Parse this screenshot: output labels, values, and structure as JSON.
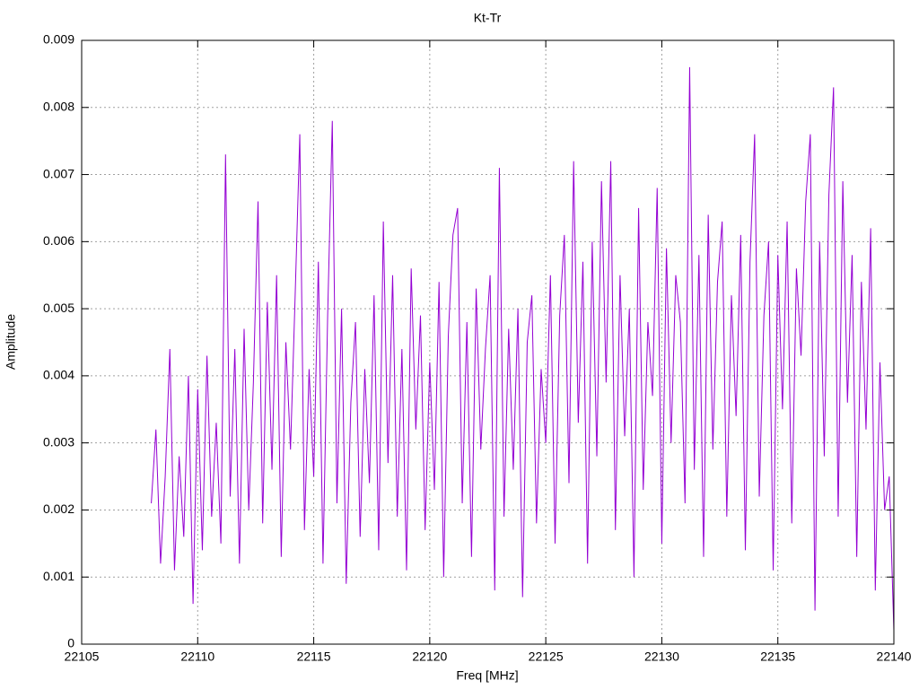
{
  "chart_data": {
    "type": "line",
    "title": "Kt-Tr",
    "x_label": "Freq [MHz]",
    "y_label": "Amplitude",
    "color": "#9400d3",
    "grid": true,
    "xlim": [
      22105,
      22140
    ],
    "xticks": [
      22105,
      22110,
      22115,
      22120,
      22125,
      22130,
      22135,
      22140
    ],
    "ylim": [
      0,
      0.009
    ],
    "yticks": [
      0,
      0.001,
      0.002,
      0.003,
      0.004,
      0.005,
      0.006,
      0.007,
      0.008,
      0.009
    ],
    "x": [
      22108,
      22108.2,
      22108.4,
      22108.6,
      22108.8,
      22109,
      22109.2,
      22109.4,
      22109.6,
      22109.8,
      22110,
      22110.2,
      22110.4,
      22110.6,
      22110.8,
      22111,
      22111.2,
      22111.4,
      22111.6,
      22111.8,
      22112,
      22112.2,
      22112.4,
      22112.6,
      22112.8,
      22113,
      22113.2,
      22113.4,
      22113.6,
      22113.8,
      22114,
      22114.2,
      22114.4,
      22114.6,
      22114.8,
      22115,
      22115.2,
      22115.4,
      22115.6,
      22115.8,
      22116,
      22116.2,
      22116.4,
      22116.6,
      22116.8,
      22117,
      22117.2,
      22117.4,
      22117.6,
      22117.8,
      22118,
      22118.2,
      22118.4,
      22118.6,
      22118.8,
      22119,
      22119.2,
      22119.4,
      22119.6,
      22119.8,
      22120,
      22120.2,
      22120.4,
      22120.6,
      22120.8,
      22121,
      22121.2,
      22121.4,
      22121.6,
      22121.8,
      22122,
      22122.2,
      22122.4,
      22122.6,
      22122.8,
      22123,
      22123.2,
      22123.4,
      22123.6,
      22123.8,
      22124,
      22124.2,
      22124.4,
      22124.6,
      22124.8,
      22125,
      22125.2,
      22125.4,
      22125.6,
      22125.8,
      22126,
      22126.2,
      22126.4,
      22126.6,
      22126.8,
      22127,
      22127.2,
      22127.4,
      22127.6,
      22127.8,
      22128,
      22128.2,
      22128.4,
      22128.6,
      22128.8,
      22129,
      22129.2,
      22129.4,
      22129.6,
      22129.8,
      22130,
      22130.2,
      22130.4,
      22130.6,
      22130.8,
      22131,
      22131.2,
      22131.4,
      22131.6,
      22131.8,
      22132,
      22132.2,
      22132.4,
      22132.6,
      22132.8,
      22133,
      22133.2,
      22133.4,
      22133.6,
      22133.8,
      22134,
      22134.2,
      22134.4,
      22134.6,
      22134.8,
      22135,
      22135.2,
      22135.4,
      22135.6,
      22135.8,
      22136,
      22136.2,
      22136.4,
      22136.6,
      22136.8,
      22137,
      22137.2,
      22137.4,
      22137.6,
      22137.8,
      22138,
      22138.2,
      22138.4,
      22138.6,
      22138.8,
      22139,
      22139.2,
      22139.4,
      22139.6,
      22139.8,
      22140
    ],
    "values": [
      0.0021,
      0.0032,
      0.0012,
      0.0025,
      0.0044,
      0.0011,
      0.0028,
      0.0016,
      0.004,
      0.0006,
      0.0038,
      0.0014,
      0.0043,
      0.0019,
      0.0033,
      0.0015,
      0.0073,
      0.0022,
      0.0044,
      0.0012,
      0.0047,
      0.002,
      0.0039,
      0.0066,
      0.0018,
      0.0051,
      0.0026,
      0.0055,
      0.0013,
      0.0045,
      0.0029,
      0.0052,
      0.0076,
      0.0017,
      0.0041,
      0.0025,
      0.0057,
      0.0012,
      0.0049,
      0.0078,
      0.0021,
      0.005,
      0.0009,
      0.0036,
      0.0048,
      0.0016,
      0.0041,
      0.0024,
      0.0052,
      0.0014,
      0.0063,
      0.0027,
      0.0055,
      0.0019,
      0.0044,
      0.0011,
      0.0056,
      0.0032,
      0.0049,
      0.0017,
      0.0042,
      0.0023,
      0.0054,
      0.001,
      0.0046,
      0.0061,
      0.0065,
      0.0021,
      0.0048,
      0.0013,
      0.0053,
      0.0029,
      0.0044,
      0.0055,
      0.0008,
      0.0071,
      0.0019,
      0.0047,
      0.0026,
      0.005,
      0.0007,
      0.0045,
      0.0052,
      0.0018,
      0.0041,
      0.003,
      0.0055,
      0.0015,
      0.0049,
      0.0061,
      0.0024,
      0.0072,
      0.0033,
      0.0057,
      0.0012,
      0.006,
      0.0028,
      0.0069,
      0.0039,
      0.0072,
      0.0017,
      0.0055,
      0.0031,
      0.005,
      0.001,
      0.0065,
      0.0023,
      0.0048,
      0.0037,
      0.0068,
      0.0015,
      0.0059,
      0.003,
      0.0055,
      0.0048,
      0.0021,
      0.0086,
      0.0026,
      0.0058,
      0.0013,
      0.0064,
      0.0029,
      0.0054,
      0.0063,
      0.0019,
      0.0052,
      0.0034,
      0.0061,
      0.0014,
      0.0057,
      0.0076,
      0.0022,
      0.0049,
      0.006,
      0.0011,
      0.0058,
      0.0035,
      0.0063,
      0.0018,
      0.0056,
      0.0043,
      0.0066,
      0.0076,
      0.0005,
      0.006,
      0.0028,
      0.0067,
      0.0083,
      0.0019,
      0.0069,
      0.0036,
      0.0058,
      0.0013,
      0.0054,
      0.0032,
      0.0062,
      0.0008,
      0.0042,
      0.002,
      0.0025,
      0.0002
    ]
  }
}
